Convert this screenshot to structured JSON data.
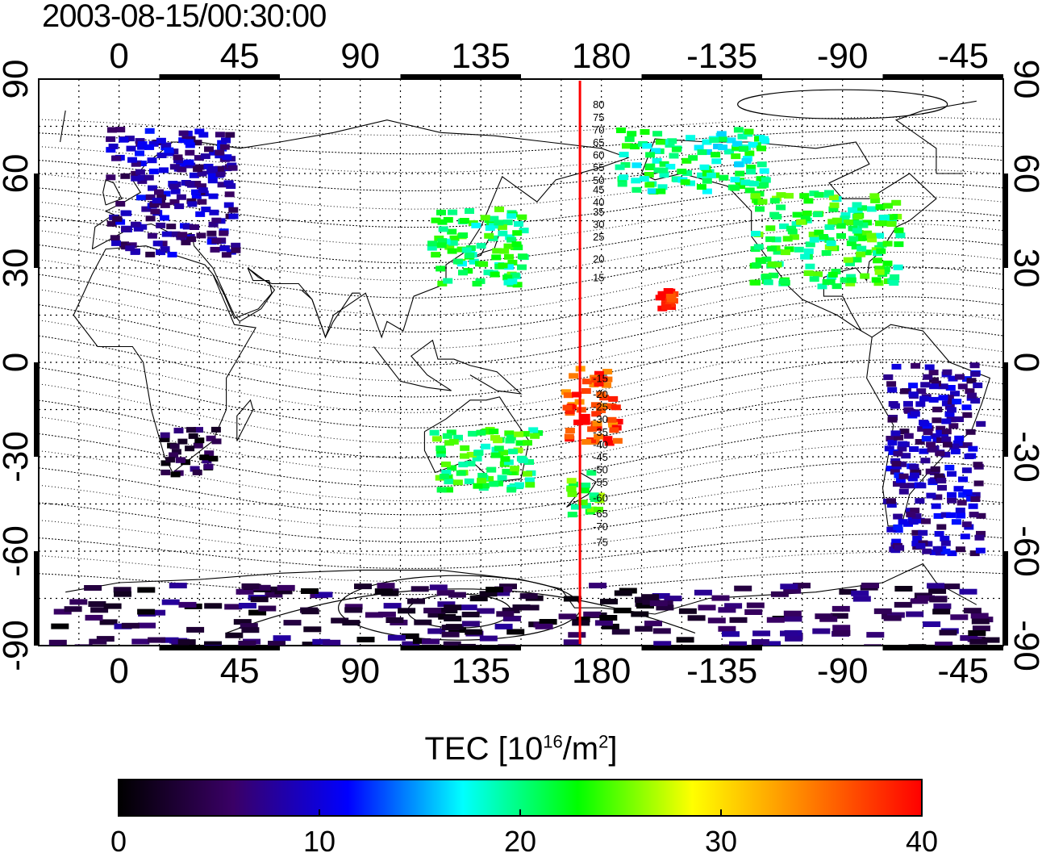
{
  "title": "2003-08-15/00:30:00",
  "axes": {
    "top_lon_labels": [
      "0",
      "45",
      "90",
      "135",
      "180",
      "-135",
      "-90",
      "-45"
    ],
    "bottom_lon_labels": [
      "0",
      "45",
      "90",
      "135",
      "180",
      "-135",
      "-90",
      "-45"
    ],
    "left_lat_labels": [
      "90",
      "60",
      "30",
      "0",
      "-30",
      "-60",
      "-90"
    ],
    "right_lat_labels": [
      "90",
      "60",
      "30",
      "0",
      "-30",
      "-60",
      "-90"
    ]
  },
  "contour_labels": [
    "80",
    "75",
    "70",
    "65",
    "60",
    "55",
    "50",
    "45",
    "40",
    "35",
    "30",
    "25",
    "20",
    "15",
    "-15",
    "-20",
    "-25",
    "-30",
    "-35",
    "-40",
    "-45",
    "-50",
    "-55",
    "-60",
    "-65",
    "-70",
    "-75"
  ],
  "colorbar": {
    "label_prefix": "TEC  [10",
    "label_exp1": "16",
    "label_mid": "/m",
    "label_exp2": "2",
    "label_suffix": "]",
    "ticks": [
      "0",
      "10",
      "20",
      "30",
      "40"
    ],
    "range": [
      0,
      40
    ],
    "stops": [
      "#000000",
      "#3a0066",
      "#0000ff",
      "#00ffff",
      "#00ff00",
      "#ffff00",
      "#ff8000",
      "#ff0000"
    ]
  },
  "marker": {
    "meridian_lon": 172,
    "color": "#ff0000"
  },
  "tec_clusters": [
    {
      "region": "europe",
      "lon": [
        -5,
        42
      ],
      "lat": [
        35,
        75
      ],
      "tec": 8
    },
    {
      "region": "north-america",
      "lon": [
        -125,
        -70
      ],
      "lat": [
        25,
        55
      ],
      "tec": 22
    },
    {
      "region": "alaska-canada",
      "lon": [
        -175,
        -120
      ],
      "lat": [
        55,
        75
      ],
      "tec": 20
    },
    {
      "region": "japan-china",
      "lon": [
        115,
        150
      ],
      "lat": [
        25,
        50
      ],
      "tec": 21
    },
    {
      "region": "australia",
      "lon": [
        115,
        155
      ],
      "lat": [
        -40,
        -20
      ],
      "tec": 22
    },
    {
      "region": "new-zealand",
      "lon": [
        165,
        178
      ],
      "lat": [
        -48,
        -34
      ],
      "tec": 23
    },
    {
      "region": "south-america",
      "lon": [
        -75,
        -40
      ],
      "lat": [
        -60,
        0
      ],
      "tec": 8
    },
    {
      "region": "southern-africa",
      "lon": [
        15,
        35
      ],
      "lat": [
        -35,
        -20
      ],
      "tec": 3
    },
    {
      "region": "hawaii",
      "lon": [
        -160,
        -154
      ],
      "lat": [
        18,
        24
      ],
      "tec": 39
    },
    {
      "region": "pacific-islands",
      "lon": [
        165,
        185
      ],
      "lat": [
        -25,
        0
      ],
      "tec": 37
    },
    {
      "region": "antarctica",
      "lon": [
        -20,
        340
      ],
      "lat": [
        -90,
        -70
      ],
      "tec": 4
    }
  ]
}
